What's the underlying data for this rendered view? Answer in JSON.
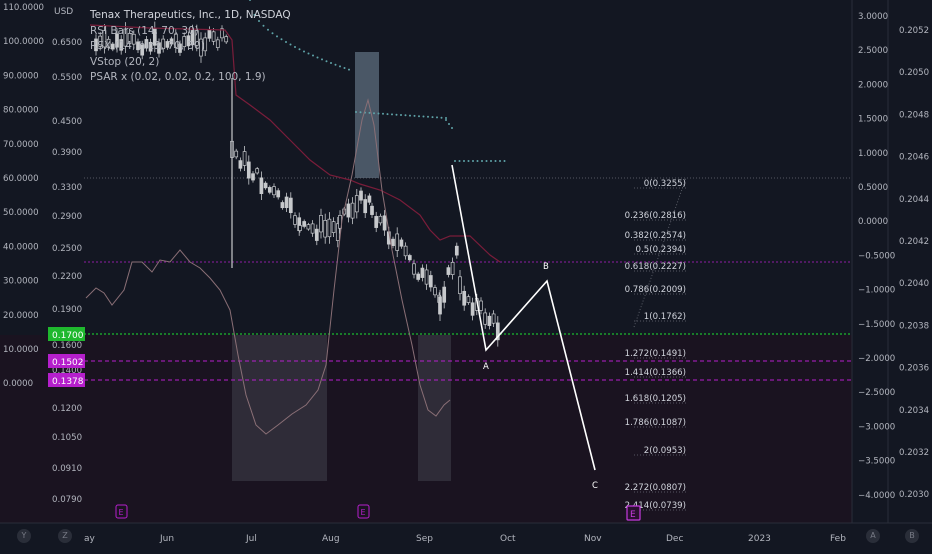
{
  "header": {
    "title": "Tenax Therapeutics, Inc., 1D, NASDAQ",
    "currency": "USD",
    "indicators": [
      "RSI Bars (14, 70, 30)",
      "RSX (14, hlc3, 70, 30)",
      "VStop (20, 2)",
      "PSAR x (0.02, 0.02, 0.2, 100, 1.9)"
    ]
  },
  "axes": {
    "left_outer": [
      "110.0000",
      "100.0000",
      "90.0000",
      "80.0000",
      "70.0000",
      "60.0000",
      "50.0000",
      "40.0000",
      "30.0000",
      "20.0000",
      "10.0000",
      "0.0000"
    ],
    "left_price": [
      "0.6500",
      "0.5500",
      "0.4500",
      "0.3900",
      "0.3300",
      "0.2900",
      "0.2500",
      "0.2200",
      "0.1900",
      "0.1600",
      "0.1400",
      "0.1200",
      "0.1050",
      "0.0910",
      "0.0790"
    ],
    "right_inner": [
      "3.0000",
      "2.5000",
      "2.0000",
      "1.5000",
      "1.0000",
      "0.5000",
      "0.0000",
      "−0.5000",
      "−1.0000",
      "−1.5000",
      "−2.0000",
      "−2.5000",
      "−3.0000",
      "−3.5000",
      "−4.0000"
    ],
    "right_outer": [
      "0.2052",
      "0.2050",
      "0.2048",
      "0.2046",
      "0.2044",
      "0.2042",
      "0.2040",
      "0.2038",
      "0.2036",
      "0.2034",
      "0.2032",
      "0.2030"
    ],
    "time": [
      "ay",
      "Jun",
      "Jul",
      "Aug",
      "Sep",
      "Oct",
      "Nov",
      "Dec",
      "2023",
      "Feb"
    ]
  },
  "price_badges": [
    {
      "label": "0.1700",
      "color": "#1fb82e"
    },
    {
      "label": "0.1502",
      "color": "#b51fcc"
    },
    {
      "label": "0.1378",
      "color": "#b51fcc"
    }
  ],
  "fib_levels": [
    {
      "ratio": "0",
      "price": "0.3255"
    },
    {
      "ratio": "0.236",
      "price": "0.2816"
    },
    {
      "ratio": "0.382",
      "price": "0.2574"
    },
    {
      "ratio": "0.5",
      "price": "0.2394"
    },
    {
      "ratio": "0.618",
      "price": "0.2227"
    },
    {
      "ratio": "0.786",
      "price": "0.2009"
    },
    {
      "ratio": "1",
      "price": "0.1762"
    },
    {
      "ratio": "1.272",
      "price": "0.1491"
    },
    {
      "ratio": "1.414",
      "price": "0.1366"
    },
    {
      "ratio": "1.618",
      "price": "0.1205"
    },
    {
      "ratio": "1.786",
      "price": "0.1087"
    },
    {
      "ratio": "2",
      "price": "0.0953"
    },
    {
      "ratio": "2.272",
      "price": "0.0807"
    },
    {
      "ratio": "2.414",
      "price": "0.0739"
    }
  ],
  "wave_labels": [
    "A",
    "B",
    "C"
  ],
  "events": [
    "E",
    "E",
    "E"
  ],
  "footer": {
    "left": [
      "Y",
      "Z"
    ],
    "right": [
      "A",
      "B"
    ]
  },
  "colors": {
    "background": "#131722",
    "candle": "#c7c9cc",
    "dots": "#5fa3a8",
    "rsi_line": "#8a6f76",
    "vstop": "#7a1d3a",
    "green_line": "#1fb82e",
    "magenta": "#b51fcc",
    "wave": "#ffffff"
  }
}
